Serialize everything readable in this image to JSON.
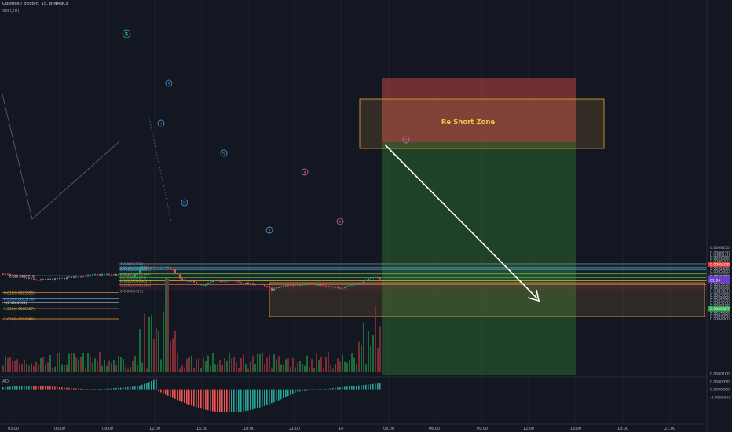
{
  "header": {
    "symbol_line": "Cosmos / Bitcoin, 15, BINANCE",
    "vol_label": "Vol (20)",
    "ao_label": "AO"
  },
  "colors": {
    "background": "#131722",
    "up": "#26a69a",
    "down": "#ef5350",
    "vol_up": "#1e6b3a",
    "vol_down": "#7a2b34",
    "red_zone": "#ef5350",
    "green_zone": "#2e7d32",
    "orange": "#f0a030",
    "arrow": "#ffffff",
    "price_tag_red": "#e53935",
    "price_tag_green": "#2fa84f",
    "price_tag_purple": "#6d3fc9"
  },
  "zone_label": "Re Short Zone",
  "price_axis": {
    "ticks": [
      "0.0006250",
      "0.0006150",
      "0.0006100",
      "0.0006050",
      "0.0006000",
      "0.0005950",
      "0.0005900",
      "0.0005850",
      "0.0005800",
      "0.0005750",
      "0.0005650",
      "0.0005600",
      "0.0005550",
      "0.0005500",
      "0.0005450",
      "0.0005400",
      "0.0005350",
      "0.0005300",
      "0.0005250",
      "0.0005200",
      "0.0005150",
      "0.0005100",
      "0.0005050",
      "0.0005000",
      "0.0004950",
      "0.0004900"
    ],
    "ao_ticks": [
      "0.0000100",
      "0.0000050",
      "0.0000000",
      "-0.0000050"
    ],
    "tags": [
      {
        "text": "0.0005929",
        "color": "red",
        "price": 0.0005929
      },
      {
        "text": "0.0005700",
        "color": "dark",
        "price": 0.00057
      },
      {
        "text": "0.0005648",
        "color": "purple",
        "price": 0.0005648
      },
      {
        "text": "01:06",
        "color": "purple_sub",
        "price": 0.0005631
      },
      {
        "text": "0.0005087",
        "color": "green",
        "price": 0.0005087
      }
    ]
  },
  "time_axis": [
    "03:00",
    "06:00",
    "09:00",
    "12:00",
    "15:00",
    "18:00",
    "21:00",
    "14",
    "03:00",
    "06:00",
    "09:00",
    "12:00",
    "15:00",
    "18:00",
    "21:00"
  ],
  "fib_main": [
    {
      "label": "1(0.0005938)",
      "price": 0.0005938
    },
    {
      "label": "0.854(0.0005865)",
      "price": 0.0005865
    },
    {
      "label": "0.786(0.0005831)",
      "price": 0.0005831
    },
    {
      "label": "0.618(0.0005748)",
      "price": 0.0005748
    },
    {
      "label": "0.5(0.0005677)",
      "price": 0.0005677
    },
    {
      "label": "0.382(0.0005617)",
      "price": 0.0005617
    },
    {
      "label": "0.236(0.0005546)",
      "price": 0.0005546
    },
    {
      "label": "0(0.0005425)",
      "price": 0.0005425
    }
  ],
  "fib_ext": [
    {
      "label": "0.618(0.0005395)",
      "price": 0.0005395
    },
    {
      "label": "0.854(0.0005278)",
      "price": 0.0005278
    },
    {
      "label": "1(0.0005205)",
      "price": 0.0005205
    },
    {
      "label": "1.236(0.0005087)",
      "price": 0.0005087
    },
    {
      "label": "1.618(0.0004896)",
      "price": 0.0004896
    }
  ],
  "left_line": {
    "label": "0.5(0.0005710)",
    "price": 0.000571
  },
  "wave_labels": [
    {
      "text": "5",
      "kind": "green"
    },
    {
      "text": "ii",
      "kind": "blue"
    },
    {
      "text": "i",
      "kind": "blue"
    },
    {
      "text": "iv",
      "kind": "blue"
    },
    {
      "text": "iii",
      "kind": "blue"
    },
    {
      "text": "v",
      "kind": "blue"
    },
    {
      "text": "a",
      "kind": "pink"
    },
    {
      "text": "b",
      "kind": "pink"
    },
    {
      "text": "c",
      "kind": "pink"
    }
  ]
}
